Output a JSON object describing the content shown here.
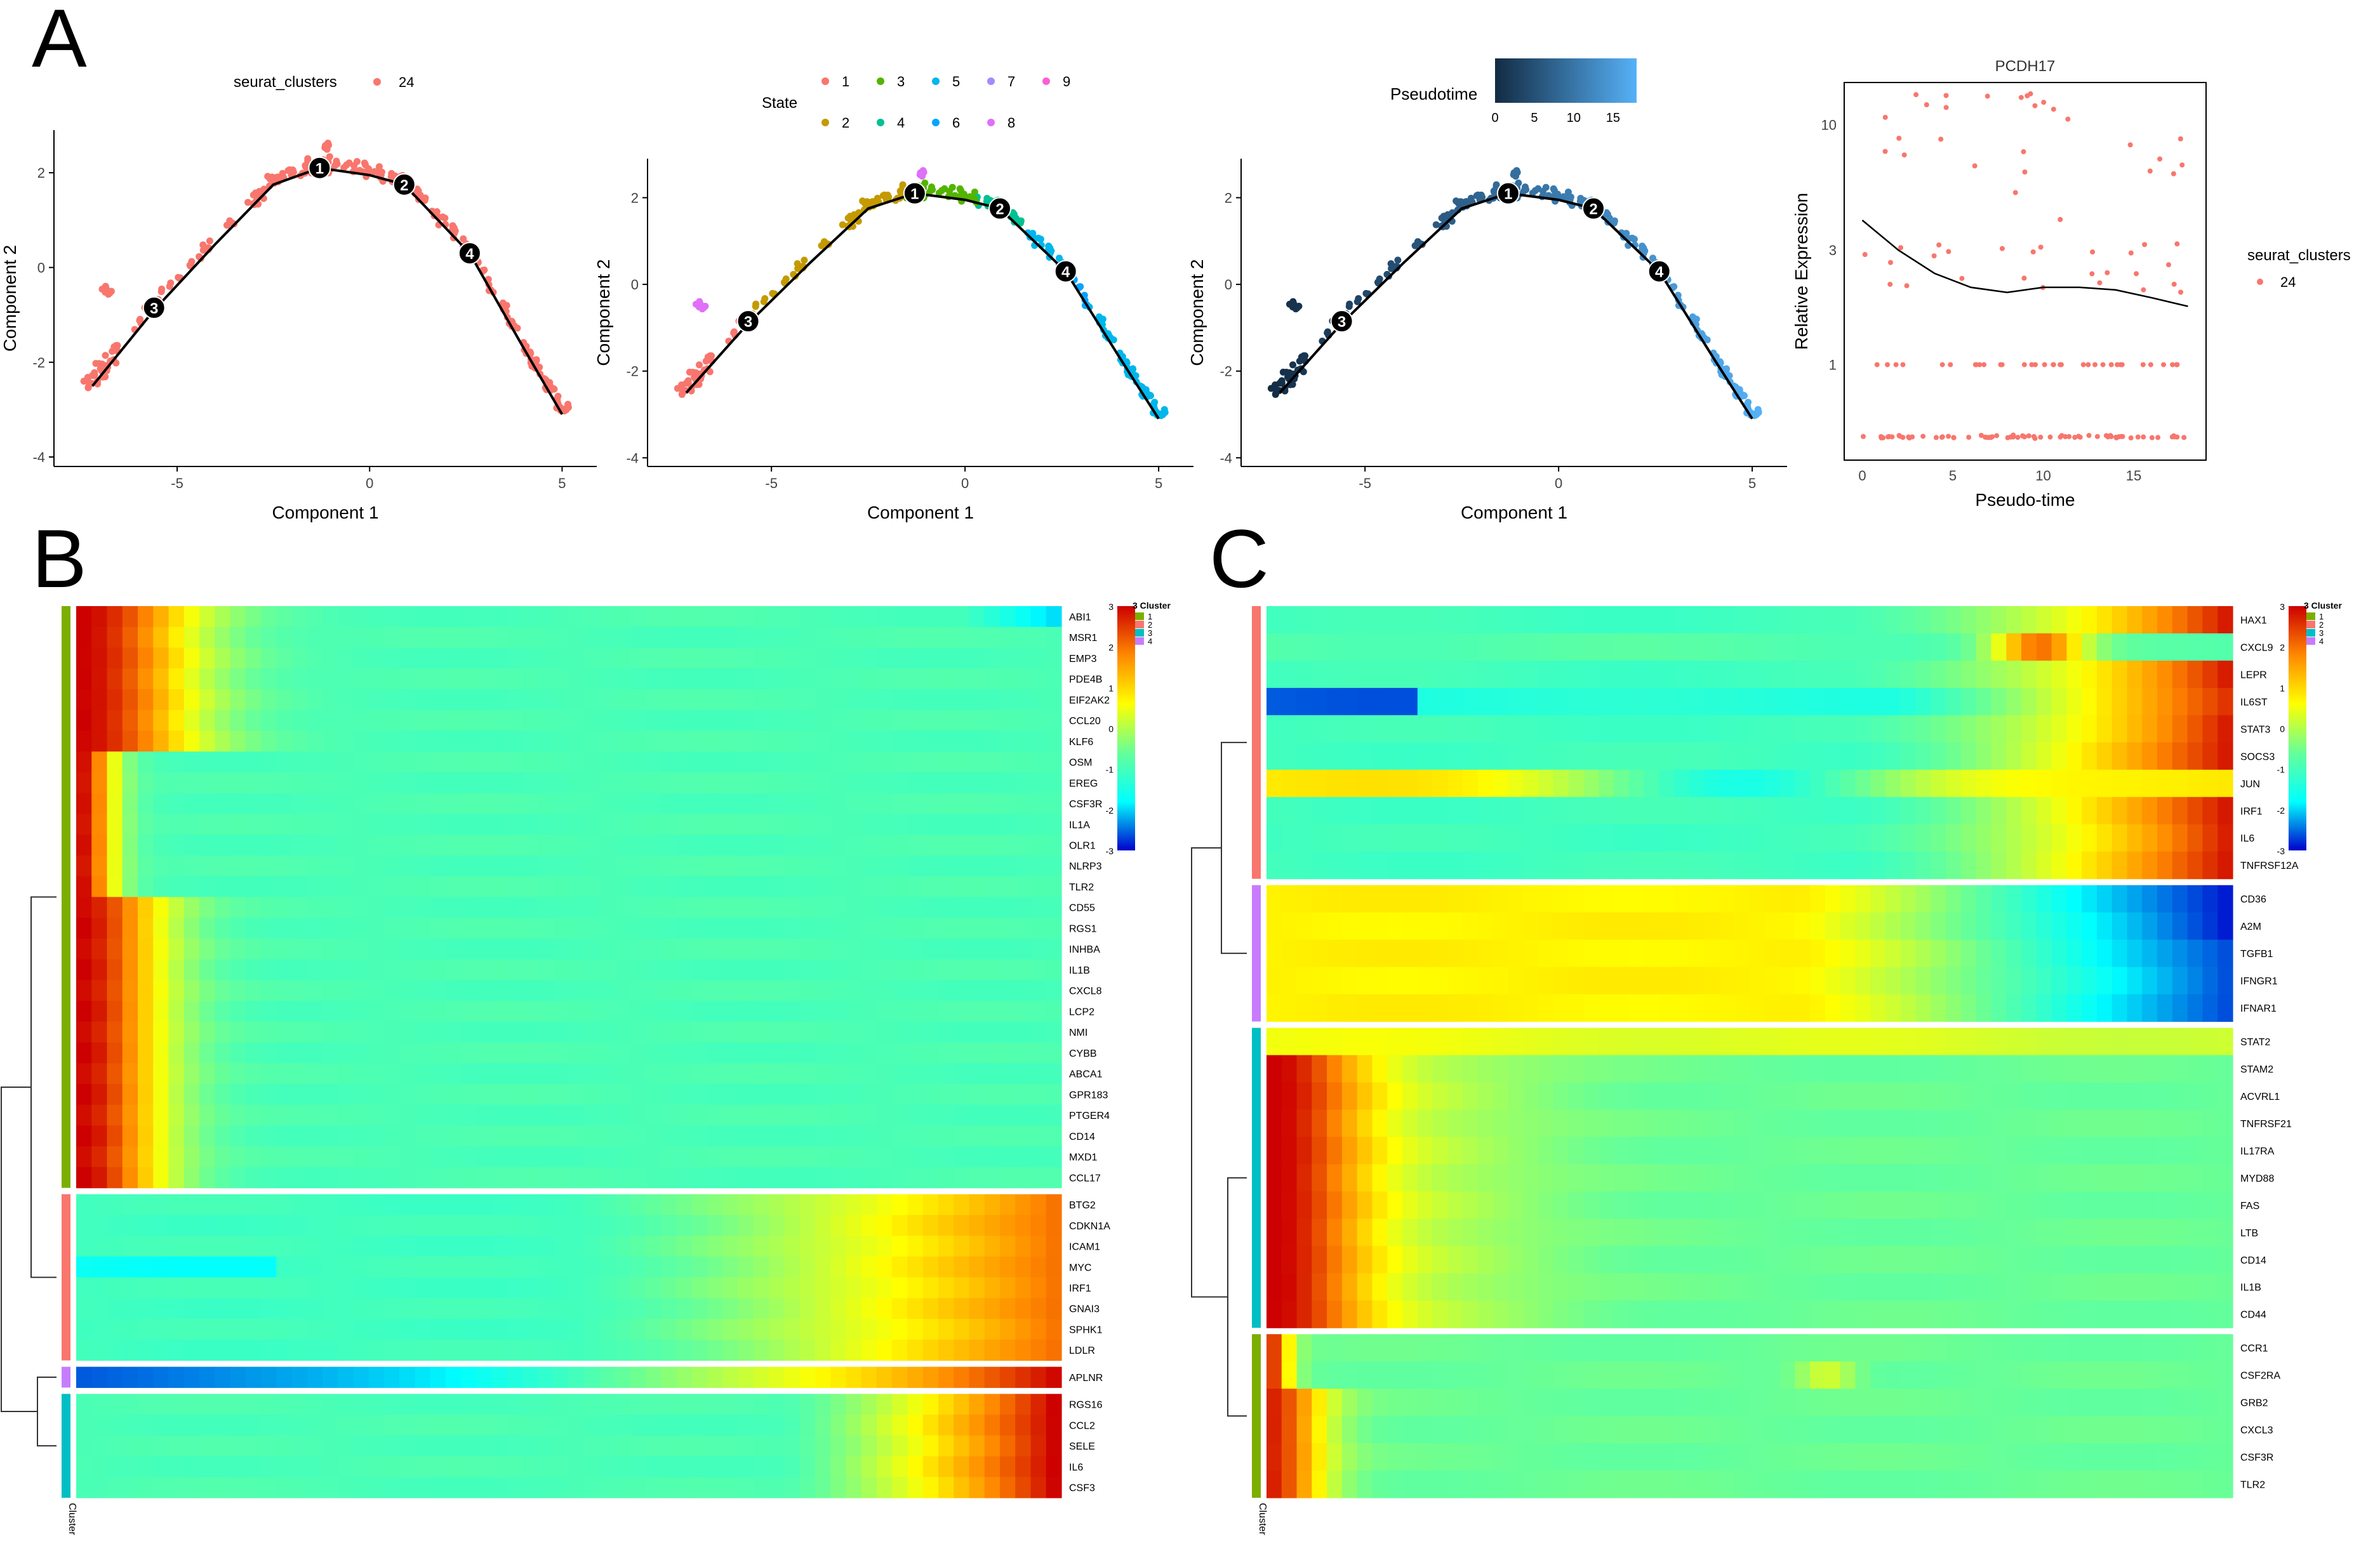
{
  "panel_labels": {
    "a": "A",
    "b": "B",
    "c": "C"
  },
  "colors": {
    "pink": "#F8766D",
    "state": [
      "#F8766D",
      "#C49A00",
      "#53B400",
      "#00C094",
      "#00B6EB",
      "#06A4FF",
      "#A58AFF",
      "#DF70F8",
      "#FB61D7"
    ],
    "cluster": {
      "1": "#7CAE00",
      "2": "#F8766D",
      "3": "#00BFC4",
      "4": "#C77CFF"
    },
    "pseudotime_low": "#132B43",
    "pseudotime_high": "#56B1F7",
    "heat_stops": [
      "#0000CC",
      "#00FFFF",
      "#66FF99",
      "#FFFF00",
      "#FF8800",
      "#CC0000"
    ]
  },
  "chart_data": [
    {
      "id": "A1",
      "type": "scatter",
      "color_by": "seurat_clusters",
      "legend_title": "seurat_clusters",
      "legend_items": [
        "24"
      ],
      "xlabel": "Component 1",
      "ylabel": "Component 2",
      "xlim": [
        -8.2,
        5.9
      ],
      "ylim": [
        -4.2,
        2.9
      ],
      "xticks": [
        -5,
        0,
        5
      ],
      "yticks": [
        -4,
        -2,
        0,
        2
      ],
      "trajectory": [
        [
          -7.2,
          -2.5
        ],
        [
          -5.6,
          -0.9
        ],
        [
          -4.0,
          0.5
        ],
        [
          -2.5,
          1.75
        ],
        [
          -1.3,
          2.1
        ],
        [
          0,
          1.95
        ],
        [
          0.9,
          1.75
        ],
        [
          2.6,
          0.3
        ],
        [
          4.0,
          -1.7
        ],
        [
          5.0,
          -3.1
        ]
      ],
      "branch_points": [
        {
          "label": "1",
          "x": -1.3,
          "y": 2.1
        },
        {
          "label": "2",
          "x": 0.9,
          "y": 1.75
        },
        {
          "label": "3",
          "x": -5.6,
          "y": -0.85
        },
        {
          "label": "4",
          "x": 2.6,
          "y": 0.3
        }
      ]
    },
    {
      "id": "A2",
      "type": "scatter",
      "color_by": "State",
      "legend_title": "State",
      "legend_items": [
        "1",
        "2",
        "3",
        "4",
        "5",
        "6",
        "7",
        "8",
        "9"
      ],
      "xlabel": "Component 1",
      "ylabel": "Component 2",
      "xlim": [
        -8.2,
        5.9
      ],
      "ylim": [
        -4.2,
        2.9
      ],
      "xticks": [
        -5,
        0,
        5
      ],
      "yticks": [
        -4,
        -2,
        0,
        2
      ],
      "branch_points": [
        {
          "label": "1",
          "x": -1.3,
          "y": 2.1
        },
        {
          "label": "2",
          "x": 0.9,
          "y": 1.75
        },
        {
          "label": "3",
          "x": -5.6,
          "y": -0.85
        },
        {
          "label": "4",
          "x": 2.6,
          "y": 0.3
        }
      ]
    },
    {
      "id": "A3",
      "type": "scatter",
      "color_by": "Pseudotime",
      "legend_title": "Pseudotime",
      "colorbar_ticks": [
        "0",
        "5",
        "10",
        "15"
      ],
      "colorbar_range": [
        0,
        18
      ],
      "xlabel": "Component 1",
      "ylabel": "Component 2",
      "xlim": [
        -8.2,
        5.9
      ],
      "ylim": [
        -4.2,
        2.9
      ],
      "xticks": [
        -5,
        0,
        5
      ],
      "yticks": [
        -4,
        -2,
        0,
        2
      ],
      "branch_points": [
        {
          "label": "1",
          "x": -1.3,
          "y": 2.1
        },
        {
          "label": "2",
          "x": 0.9,
          "y": 1.75
        },
        {
          "label": "3",
          "x": -5.6,
          "y": -0.85
        },
        {
          "label": "4",
          "x": 2.6,
          "y": 0.3
        }
      ]
    },
    {
      "id": "A4",
      "type": "scatter",
      "title": "PCDH17",
      "xlabel": "Pseudo-time",
      "ylabel": "Relative Expression",
      "legend_title": "seurat_clusters",
      "legend_items": [
        "24"
      ],
      "xlim": [
        -1,
        19
      ],
      "ylim": [
        0.4,
        15
      ],
      "y_scale": "log",
      "xticks": [
        0,
        5,
        10,
        15
      ],
      "yticks": [
        1,
        3,
        10
      ],
      "ytick_labels": [
        "1",
        "3",
        "10"
      ],
      "smooth_fit": [
        [
          0,
          4.0
        ],
        [
          2,
          3.0
        ],
        [
          4,
          2.4
        ],
        [
          6,
          2.1
        ],
        [
          8,
          2.0
        ],
        [
          10,
          2.1
        ],
        [
          12,
          2.1
        ],
        [
          14,
          2.05
        ],
        [
          16,
          1.9
        ],
        [
          18,
          1.75
        ]
      ]
    },
    {
      "id": "B",
      "type": "heatmap",
      "legend_title": "3 Cluster",
      "legend_items": [
        "1",
        "2",
        "3",
        "4"
      ],
      "colorbar_ticks": [
        "3",
        "2",
        "1",
        "0",
        "-1",
        "-2",
        "-3"
      ],
      "column_annotation": "Cluster",
      "gene_groups": [
        {
          "cluster": "1",
          "genes": [
            "ABI1",
            "MSR1",
            "EMP3",
            "PDE4B",
            "EIF2AK2",
            "CCL20",
            "KLF6",
            "OSM",
            "EREG",
            "CSF3R",
            "IL1A",
            "OLR1",
            "NLRP3",
            "TLR2",
            "CD55",
            "RGS1",
            "INHBA",
            "IL1B",
            "CXCL8",
            "LCP2",
            "NMI",
            "CYBB",
            "ABCA1",
            "GPR183",
            "PTGER4",
            "CD14",
            "MXD1",
            "CCL17"
          ]
        },
        {
          "cluster": "2",
          "genes": [
            "BTG2",
            "CDKN1A",
            "ICAM1",
            "MYC",
            "IRF1",
            "GNAI3",
            "SPHK1",
            "LDLR"
          ]
        },
        {
          "cluster": "4",
          "genes": [
            "APLNR"
          ]
        },
        {
          "cluster": "3",
          "genes": [
            "RGS16",
            "CCL2",
            "SELE",
            "IL6",
            "CSF3"
          ]
        }
      ]
    },
    {
      "id": "C",
      "type": "heatmap",
      "legend_title": "3 Cluster",
      "legend_items": [
        "1",
        "2",
        "3",
        "4"
      ],
      "colorbar_ticks": [
        "3",
        "2",
        "1",
        "0",
        "-1",
        "-2",
        "-3"
      ],
      "column_annotation": "Cluster",
      "gene_groups": [
        {
          "cluster": "2",
          "genes": [
            "HAX1",
            "CXCL9",
            "LEPR",
            "IL6ST",
            "STAT3",
            "SOCS3",
            "JUN",
            "IRF1",
            "IL6",
            "TNFRSF12A"
          ]
        },
        {
          "cluster": "4",
          "genes": [
            "CD36",
            "A2M",
            "TGFB1",
            "IFNGR1",
            "IFNAR1"
          ]
        },
        {
          "cluster": "3",
          "genes": [
            "STAT2",
            "STAM2",
            "ACVRL1",
            "TNFRSF21",
            "IL17RA",
            "MYD88",
            "FAS",
            "LTB",
            "CD14",
            "IL1B",
            "CD44"
          ]
        },
        {
          "cluster": "1",
          "genes": [
            "CCR1",
            "CSF2RA",
            "GRB2",
            "CXCL3",
            "CSF3R",
            "TLR2"
          ]
        }
      ]
    }
  ]
}
